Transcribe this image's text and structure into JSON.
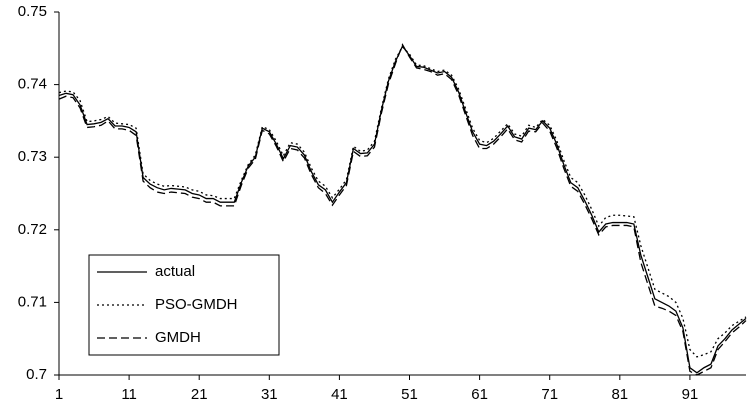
{
  "chart_data": {
    "type": "line",
    "x": [
      1,
      2,
      3,
      4,
      5,
      6,
      7,
      8,
      9,
      10,
      11,
      12,
      13,
      14,
      15,
      16,
      17,
      18,
      19,
      20,
      21,
      22,
      23,
      24,
      25,
      26,
      27,
      28,
      29,
      30,
      31,
      32,
      33,
      34,
      35,
      36,
      37,
      38,
      39,
      40,
      41,
      42,
      43,
      44,
      45,
      46,
      47,
      48,
      49,
      50,
      51,
      52,
      53,
      54,
      55,
      56,
      57,
      58,
      59,
      60,
      61,
      62,
      63,
      64,
      65,
      66,
      67,
      68,
      69,
      70,
      71,
      72,
      73,
      74,
      75,
      76,
      77,
      78,
      79,
      80,
      81,
      82,
      83,
      84,
      85,
      86,
      87,
      88,
      89,
      90,
      91,
      92,
      93,
      94,
      95,
      96,
      97,
      98,
      99
    ],
    "xlim": [
      1,
      99
    ],
    "xticks": [
      1,
      11,
      21,
      31,
      41,
      51,
      61,
      71,
      81,
      91
    ],
    "ylim": [
      0.7,
      0.75
    ],
    "yticks": [
      0.7,
      0.71,
      0.72,
      0.73,
      0.74,
      0.75
    ],
    "grid": false,
    "legend": "lower left",
    "series": [
      {
        "name": "actual",
        "color": "#000000",
        "style": "solid",
        "values": [
          0.7385,
          0.7388,
          0.7386,
          0.7372,
          0.7345,
          0.7346,
          0.7348,
          0.7353,
          0.7343,
          0.7343,
          0.7341,
          0.7335,
          0.7272,
          0.7263,
          0.7258,
          0.7255,
          0.7257,
          0.7256,
          0.7255,
          0.725,
          0.7248,
          0.7243,
          0.7243,
          0.7238,
          0.7238,
          0.7238,
          0.7265,
          0.7288,
          0.73,
          0.734,
          0.7335,
          0.7318,
          0.7298,
          0.7316,
          0.7314,
          0.7303,
          0.728,
          0.7262,
          0.7255,
          0.7238,
          0.7252,
          0.7265,
          0.7312,
          0.7305,
          0.7306,
          0.7318,
          0.7365,
          0.7405,
          0.7432,
          0.7453,
          0.744,
          0.7425,
          0.7424,
          0.742,
          0.7416,
          0.7418,
          0.741,
          0.739,
          0.7362,
          0.7335,
          0.7318,
          0.7316,
          0.7322,
          0.7332,
          0.7343,
          0.7328,
          0.7325,
          0.734,
          0.7338,
          0.735,
          0.734,
          0.7318,
          0.729,
          0.7265,
          0.7258,
          0.724,
          0.722,
          0.7197,
          0.7208,
          0.721,
          0.721,
          0.721,
          0.7208,
          0.7165,
          0.7135,
          0.7105,
          0.71,
          0.7095,
          0.7088,
          0.7065,
          0.701,
          0.7003,
          0.701,
          0.7015,
          0.704,
          0.705,
          0.7062,
          0.707,
          0.7078
        ]
      },
      {
        "name": "PSO-GMDH",
        "color": "#000000",
        "style": "dotted",
        "values": [
          0.7389,
          0.7391,
          0.739,
          0.7378,
          0.7349,
          0.735,
          0.7352,
          0.7356,
          0.7347,
          0.7346,
          0.7345,
          0.734,
          0.7277,
          0.7268,
          0.7263,
          0.726,
          0.7261,
          0.726,
          0.7259,
          0.7255,
          0.7253,
          0.7248,
          0.7247,
          0.7243,
          0.7243,
          0.7243,
          0.7268,
          0.729,
          0.7303,
          0.7342,
          0.7338,
          0.7322,
          0.7302,
          0.732,
          0.7318,
          0.7307,
          0.7285,
          0.7267,
          0.726,
          0.7244,
          0.7256,
          0.7269,
          0.7315,
          0.7308,
          0.731,
          0.7322,
          0.7368,
          0.7408,
          0.7435,
          0.7452,
          0.7442,
          0.7427,
          0.7426,
          0.7422,
          0.7418,
          0.742,
          0.7413,
          0.7394,
          0.7367,
          0.734,
          0.7323,
          0.732,
          0.7326,
          0.7336,
          0.7346,
          0.7332,
          0.7329,
          0.7344,
          0.7341,
          0.7352,
          0.7344,
          0.7323,
          0.7296,
          0.7272,
          0.7265,
          0.7248,
          0.7228,
          0.7205,
          0.7217,
          0.722,
          0.722,
          0.7219,
          0.7218,
          0.7178,
          0.7148,
          0.7118,
          0.7113,
          0.7108,
          0.71,
          0.7078,
          0.7035,
          0.7025,
          0.7028,
          0.7032,
          0.705,
          0.7058,
          0.7068,
          0.7074,
          0.708
        ]
      },
      {
        "name": "GMDH",
        "color": "#000000",
        "style": "dashed",
        "values": [
          0.738,
          0.7384,
          0.7382,
          0.7368,
          0.7341,
          0.7342,
          0.7344,
          0.735,
          0.7339,
          0.7339,
          0.7337,
          0.733,
          0.7267,
          0.7258,
          0.7252,
          0.725,
          0.7252,
          0.7251,
          0.725,
          0.7245,
          0.7243,
          0.7238,
          0.7238,
          0.7233,
          0.7233,
          0.7233,
          0.7261,
          0.7285,
          0.7297,
          0.7337,
          0.7332,
          0.7315,
          0.7294,
          0.7312,
          0.731,
          0.7299,
          0.7276,
          0.7258,
          0.725,
          0.7234,
          0.7248,
          0.7261,
          0.7308,
          0.7301,
          0.7302,
          0.7314,
          0.7361,
          0.7401,
          0.7429,
          0.7455,
          0.7438,
          0.7423,
          0.7421,
          0.7418,
          0.7413,
          0.7415,
          0.7407,
          0.7386,
          0.7358,
          0.733,
          0.7312,
          0.7312,
          0.7318,
          0.7328,
          0.7339,
          0.7324,
          0.7321,
          0.7336,
          0.7335,
          0.7347,
          0.7336,
          0.7313,
          0.7285,
          0.726,
          0.7253,
          0.7235,
          0.7215,
          0.7193,
          0.7204,
          0.7206,
          0.7206,
          0.7206,
          0.7204,
          0.7155,
          0.7125,
          0.7095,
          0.7092,
          0.7088,
          0.7082,
          0.706,
          0.7005,
          0.7,
          0.7005,
          0.701,
          0.7035,
          0.7046,
          0.7058,
          0.7066,
          0.7075
        ]
      }
    ]
  }
}
